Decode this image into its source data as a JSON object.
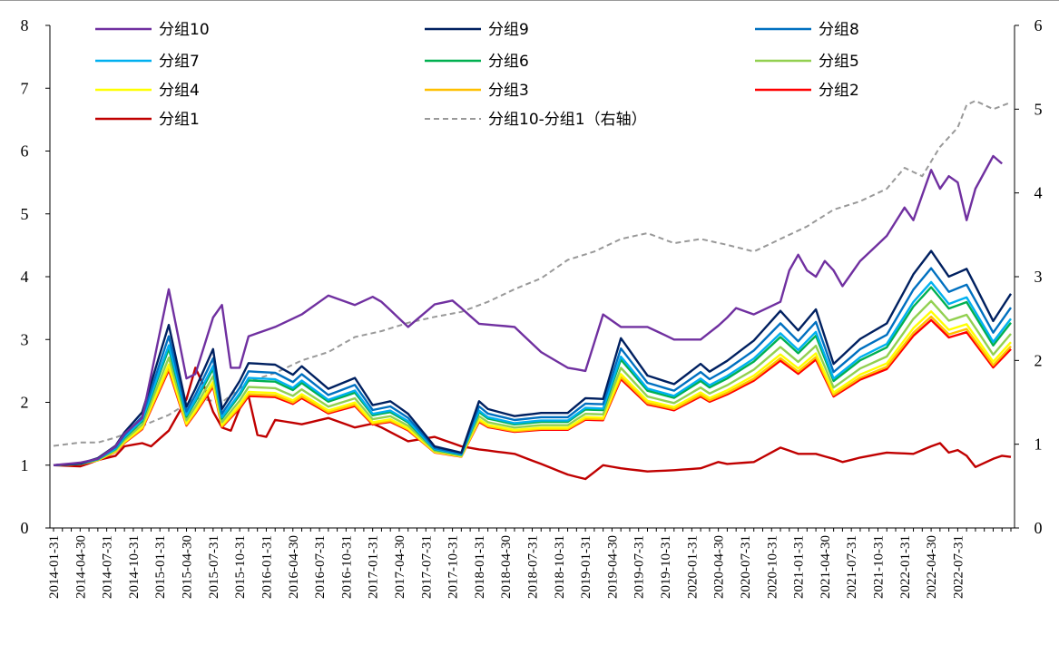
{
  "chart_data": {
    "type": "line",
    "title": "",
    "xlabel": "",
    "ylabel": "",
    "ylim": [
      0,
      8
    ],
    "y2lim": [
      0,
      6
    ],
    "left_ticks": [
      "0",
      "1",
      "2",
      "3",
      "4",
      "5",
      "6",
      "7",
      "8"
    ],
    "right_ticks": [
      "0",
      "1",
      "2",
      "3",
      "4",
      "5",
      "6"
    ],
    "x_ticks": [
      "2014-01-31",
      "2014-04-30",
      "2014-07-31",
      "2014-10-31",
      "2015-01-31",
      "2015-04-30",
      "2015-07-31",
      "2015-10-31",
      "2016-01-31",
      "2016-04-30",
      "2016-07-31",
      "2016-10-31",
      "2017-01-31",
      "2017-04-30",
      "2017-07-31",
      "2017-10-31",
      "2018-01-31",
      "2018-04-30",
      "2018-07-31",
      "2018-10-31",
      "2019-01-31",
      "2019-04-30",
      "2019-07-31",
      "2019-10-31",
      "2020-01-31",
      "2020-04-30",
      "2020-07-31",
      "2020-10-31",
      "2021-01-31",
      "2021-04-30",
      "2021-07-31",
      "2021-10-31",
      "2022-01-31",
      "2022-04-30",
      "2022-07-31"
    ],
    "legend": {
      "placement": "top",
      "columns": 3
    },
    "anchors": {
      "x": [
        0,
        3,
        5,
        7,
        8,
        10,
        13,
        15,
        16,
        18,
        19,
        21,
        22,
        25,
        27,
        28,
        31,
        34,
        36,
        38,
        40,
        43,
        46,
        48,
        49,
        52,
        55,
        58,
        60,
        62,
        64,
        67,
        70,
        73,
        74,
        76,
        79,
        82,
        84,
        86,
        88,
        91,
        94,
        97,
        99,
        101,
        103,
        104,
        106,
        108,
        109,
        111,
        113,
        115
      ],
      "ref": [
        1.0,
        1.02,
        1.09,
        1.25,
        1.42,
        1.68,
        2.8,
        1.75,
        1.98,
        2.49,
        1.72,
        2.08,
        2.31,
        2.29,
        2.16,
        2.27,
        1.98,
        2.12,
        1.77,
        1.82,
        1.66,
        1.24,
        1.16,
        1.82,
        1.72,
        1.63,
        1.67,
        1.67,
        1.86,
        1.85,
        2.63,
        2.15,
        2.04,
        2.3,
        2.2,
        2.34,
        2.6,
        2.98,
        2.73,
        3.0,
        2.3,
        2.62,
        2.82,
        3.45,
        3.75,
        3.42,
        3.52,
        3.3,
        2.85,
        3.2,
        3.45,
        3.55,
        3.45,
        3.38
      ]
    },
    "series": [
      {
        "name": "分组10",
        "color": "#7030a0",
        "axis": "left",
        "points": [
          [
            0,
            1.0
          ],
          [
            3,
            1.04
          ],
          [
            5,
            1.1
          ],
          [
            7,
            1.3
          ],
          [
            8,
            1.5
          ],
          [
            10,
            1.75
          ],
          [
            13,
            3.8
          ],
          [
            15,
            2.38
          ],
          [
            16,
            2.45
          ],
          [
            18,
            3.35
          ],
          [
            19,
            3.55
          ],
          [
            20,
            2.55
          ],
          [
            21,
            2.55
          ],
          [
            22,
            3.05
          ],
          [
            25,
            3.2
          ],
          [
            28,
            3.4
          ],
          [
            31,
            3.7
          ],
          [
            34,
            3.55
          ],
          [
            36,
            3.68
          ],
          [
            37,
            3.6
          ],
          [
            40,
            3.2
          ],
          [
            43,
            3.56
          ],
          [
            45,
            3.62
          ],
          [
            46,
            3.5
          ],
          [
            48,
            3.25
          ],
          [
            52,
            3.2
          ],
          [
            55,
            2.8
          ],
          [
            58,
            2.55
          ],
          [
            60,
            2.5
          ],
          [
            62,
            3.4
          ],
          [
            64,
            3.2
          ],
          [
            67,
            3.2
          ],
          [
            70,
            3.0
          ],
          [
            73,
            3.0
          ],
          [
            75,
            3.22
          ],
          [
            76,
            3.35
          ],
          [
            77,
            3.5
          ],
          [
            79,
            3.4
          ],
          [
            82,
            3.6
          ],
          [
            83,
            4.1
          ],
          [
            84,
            4.35
          ],
          [
            85,
            4.1
          ],
          [
            86,
            4.0
          ],
          [
            87,
            4.25
          ],
          [
            88,
            4.1
          ],
          [
            89,
            3.85
          ],
          [
            91,
            4.25
          ],
          [
            94,
            4.65
          ],
          [
            96,
            5.1
          ],
          [
            97,
            4.9
          ],
          [
            99,
            5.7
          ],
          [
            100,
            5.4
          ],
          [
            101,
            5.6
          ],
          [
            102,
            5.5
          ],
          [
            103,
            4.9
          ],
          [
            104,
            5.4
          ],
          [
            106,
            5.92
          ],
          [
            107,
            5.8
          ]
        ]
      },
      {
        "name": "分组9",
        "color": "#002060",
        "axis": "left",
        "scale": 1.24
      },
      {
        "name": "分组8",
        "color": "#0070c0",
        "axis": "left",
        "scale": 1.14
      },
      {
        "name": "分组7",
        "color": "#00b0f0",
        "axis": "left",
        "scale": 1.06
      },
      {
        "name": "分组6",
        "color": "#00b050",
        "axis": "left",
        "scale": 1.03
      },
      {
        "name": "分组5",
        "color": "#92d050",
        "axis": "left",
        "scale": 0.95
      },
      {
        "name": "分组4",
        "color": "#ffff00",
        "axis": "left",
        "scale": 0.89
      },
      {
        "name": "分组3",
        "color": "#ffc000",
        "axis": "left",
        "scale": 0.86
      },
      {
        "name": "分组2",
        "color": "#ff0000",
        "axis": "left",
        "scale": 0.84
      },
      {
        "name": "分组1",
        "color": "#c00000",
        "axis": "left",
        "points": [
          [
            0,
            1.0
          ],
          [
            3,
            0.98
          ],
          [
            5,
            1.08
          ],
          [
            7,
            1.15
          ],
          [
            8,
            1.3
          ],
          [
            10,
            1.35
          ],
          [
            11,
            1.3
          ],
          [
            13,
            1.55
          ],
          [
            15,
            2.05
          ],
          [
            16,
            2.55
          ],
          [
            17,
            2.25
          ],
          [
            18,
            1.85
          ],
          [
            19,
            1.6
          ],
          [
            20,
            1.55
          ],
          [
            21,
            1.9
          ],
          [
            22,
            2.1
          ],
          [
            23,
            1.48
          ],
          [
            24,
            1.45
          ],
          [
            25,
            1.72
          ],
          [
            28,
            1.65
          ],
          [
            31,
            1.75
          ],
          [
            34,
            1.6
          ],
          [
            36,
            1.66
          ],
          [
            37,
            1.6
          ],
          [
            40,
            1.38
          ],
          [
            43,
            1.45
          ],
          [
            46,
            1.3
          ],
          [
            48,
            1.25
          ],
          [
            52,
            1.18
          ],
          [
            55,
            1.02
          ],
          [
            58,
            0.85
          ],
          [
            60,
            0.78
          ],
          [
            62,
            1.0
          ],
          [
            64,
            0.95
          ],
          [
            67,
            0.9
          ],
          [
            70,
            0.92
          ],
          [
            73,
            0.95
          ],
          [
            75,
            1.05
          ],
          [
            76,
            1.02
          ],
          [
            79,
            1.05
          ],
          [
            82,
            1.28
          ],
          [
            84,
            1.18
          ],
          [
            86,
            1.18
          ],
          [
            88,
            1.1
          ],
          [
            89,
            1.05
          ],
          [
            91,
            1.12
          ],
          [
            94,
            1.2
          ],
          [
            97,
            1.18
          ],
          [
            99,
            1.3
          ],
          [
            100,
            1.35
          ],
          [
            101,
            1.2
          ],
          [
            102,
            1.24
          ],
          [
            103,
            1.15
          ],
          [
            104,
            0.97
          ],
          [
            106,
            1.1
          ],
          [
            107,
            1.15
          ],
          [
            108,
            1.13
          ]
        ]
      },
      {
        "name": "分组10-分组1（右轴）",
        "color": "#999999",
        "axis": "right",
        "dashed": true,
        "points": [
          [
            0,
            0.98
          ],
          [
            3,
            1.02
          ],
          [
            5,
            1.02
          ],
          [
            7,
            1.08
          ],
          [
            8,
            1.12
          ],
          [
            10,
            1.22
          ],
          [
            13,
            1.35
          ],
          [
            16,
            1.55
          ],
          [
            19,
            1.5
          ],
          [
            22,
            1.75
          ],
          [
            25,
            1.85
          ],
          [
            28,
            2.0
          ],
          [
            31,
            2.1
          ],
          [
            34,
            2.28
          ],
          [
            37,
            2.35
          ],
          [
            40,
            2.45
          ],
          [
            43,
            2.52
          ],
          [
            46,
            2.58
          ],
          [
            49,
            2.7
          ],
          [
            52,
            2.85
          ],
          [
            55,
            2.98
          ],
          [
            58,
            3.2
          ],
          [
            61,
            3.3
          ],
          [
            64,
            3.45
          ],
          [
            67,
            3.52
          ],
          [
            70,
            3.4
          ],
          [
            73,
            3.45
          ],
          [
            76,
            3.38
          ],
          [
            79,
            3.3
          ],
          [
            82,
            3.45
          ],
          [
            85,
            3.6
          ],
          [
            88,
            3.8
          ],
          [
            91,
            3.9
          ],
          [
            94,
            4.05
          ],
          [
            96,
            4.3
          ],
          [
            98,
            4.2
          ],
          [
            100,
            4.55
          ],
          [
            102,
            4.78
          ],
          [
            103,
            5.05
          ],
          [
            104,
            5.1
          ],
          [
            106,
            5.0
          ],
          [
            108,
            5.08
          ]
        ]
      }
    ]
  }
}
